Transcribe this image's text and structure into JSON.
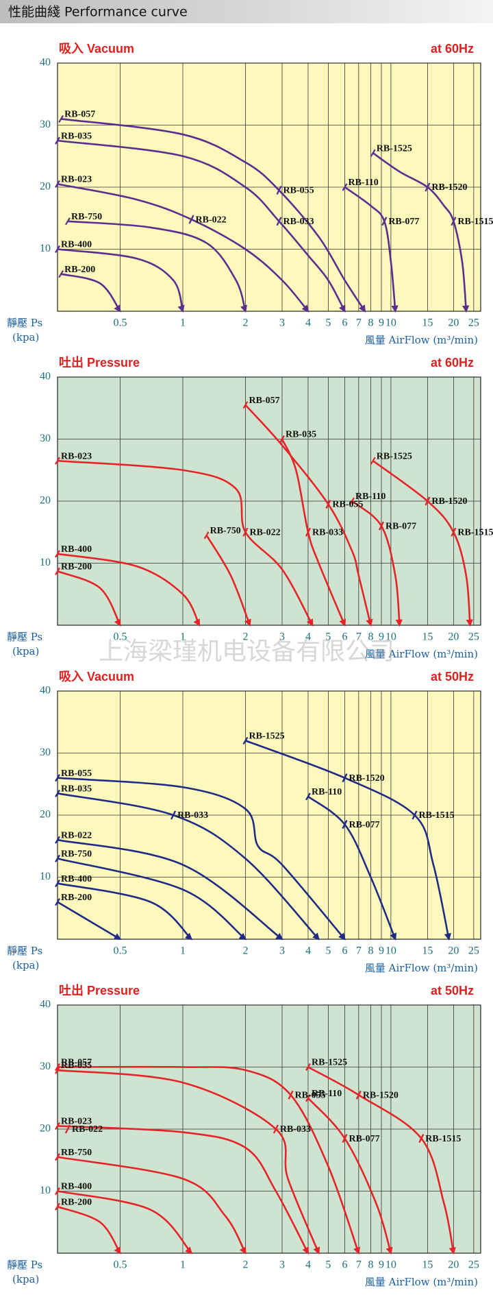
{
  "header": "性能曲綫 Performance curve",
  "watermark": "上海梁瑾机电设备有限公司",
  "chart_data": [
    {
      "type": "line",
      "title": "吸入 Vacuum",
      "subtitle": "at 60Hz",
      "ylabel": "靜壓 Ps",
      "ylabel_unit": "(kpa)",
      "xlabel": "風量 AirFlow (m³/min)",
      "xscale": "log",
      "xlim": [
        0.25,
        27
      ],
      "xticks": [
        0.5,
        1,
        2,
        3,
        4,
        5,
        6,
        7,
        8,
        9,
        10,
        15,
        20,
        25
      ],
      "ylim": [
        0,
        40
      ],
      "yticks": [
        10,
        20,
        30,
        40
      ],
      "grid": true,
      "background": "#fdf9bd",
      "color": "#5a2d8f",
      "series": [
        {
          "name": "RB-057",
          "x": [
            0.26,
            1,
            2,
            2.9,
            4.5,
            6,
            7.5
          ],
          "values": [
            31,
            28.5,
            24,
            19.5,
            12,
            5,
            0
          ]
        },
        {
          "name": "RB-035",
          "x": [
            0.25,
            1,
            2,
            2.9,
            4,
            5,
            6
          ],
          "values": [
            27.5,
            25,
            20,
            14.5,
            9,
            5,
            0
          ]
        },
        {
          "name": "RB-023",
          "x": [
            0.25,
            0.6,
            1.1,
            2,
            3,
            4
          ],
          "values": [
            20.5,
            18,
            14.8,
            10,
            5,
            0
          ]
        },
        {
          "name": "RB-750",
          "x": [
            0.28,
            0.7,
            1.3,
            1.8,
            2
          ],
          "values": [
            14.5,
            13.5,
            11,
            5,
            0
          ]
        },
        {
          "name": "RB-400",
          "x": [
            0.25,
            0.6,
            0.9,
            1
          ],
          "values": [
            10,
            8.5,
            5,
            0
          ]
        },
        {
          "name": "RB-200",
          "x": [
            0.26,
            0.4,
            0.5
          ],
          "values": [
            6,
            4.5,
            0
          ]
        },
        {
          "name": "RB-110",
          "x": [
            6,
            8,
            9.3,
            10,
            10.5
          ],
          "values": [
            20,
            17,
            14.5,
            8,
            0
          ]
        },
        {
          "name": "RB-1525",
          "x": [
            8.2,
            11,
            15,
            18,
            20,
            22,
            23
          ],
          "values": [
            25.5,
            22.5,
            20,
            17,
            14.5,
            8,
            0
          ]
        }
      ],
      "markers": [
        {
          "label": "RB-055",
          "x": 2.9,
          "y": 19.5
        },
        {
          "label": "RB-033",
          "x": 2.9,
          "y": 14.5
        },
        {
          "label": "RB-022",
          "x": 1.1,
          "y": 14.8
        },
        {
          "label": "RB-077",
          "x": 9.3,
          "y": 14.5
        },
        {
          "label": "RB-1520",
          "x": 15,
          "y": 20
        },
        {
          "label": "RB-1515",
          "x": 20,
          "y": 14.5
        }
      ]
    },
    {
      "type": "line",
      "title": "吐出 Pressure",
      "subtitle": "at 60Hz",
      "ylabel": "靜壓 Ps",
      "ylabel_unit": "(kpa)",
      "xlabel": "風量 AirFlow (m³/min)",
      "xscale": "log",
      "xlim": [
        0.25,
        27
      ],
      "xticks": [
        0.5,
        1,
        2,
        3,
        4,
        5,
        6,
        7,
        8,
        9,
        10,
        15,
        20,
        25
      ],
      "ylim": [
        0,
        40
      ],
      "yticks": [
        10,
        20,
        30,
        40
      ],
      "grid": true,
      "background": "#cfe4d0",
      "color": "#e52429",
      "series": [
        {
          "name": "RB-057",
          "x": [
            2,
            3,
            5,
            6.5,
            7,
            8
          ],
          "values": [
            35.5,
            29,
            19.5,
            12,
            8,
            0
          ]
        },
        {
          "name": "RB-035",
          "x": [
            3,
            3.5,
            4,
            4.5,
            6
          ],
          "values": [
            30,
            25,
            15,
            10,
            0
          ]
        },
        {
          "name": "RB-023",
          "x": [
            0.25,
            1,
            1.8,
            2,
            3,
            4.2
          ],
          "values": [
            26.5,
            25,
            22,
            15,
            9,
            0
          ]
        },
        {
          "name": "RB-750",
          "x": [
            1.3,
            1.7,
            2.1
          ],
          "values": [
            14.5,
            8,
            0
          ]
        },
        {
          "name": "RB-400",
          "x": [
            0.25,
            0.6,
            1,
            1.2
          ],
          "values": [
            11.5,
            9.5,
            5,
            0
          ]
        },
        {
          "name": "RB-200",
          "x": [
            0.25,
            0.4,
            0.5
          ],
          "values": [
            8.7,
            6,
            0
          ]
        },
        {
          "name": "RB-110",
          "x": [
            6.5,
            9,
            10.5,
            11
          ],
          "values": [
            20,
            16,
            8,
            0
          ]
        },
        {
          "name": "RB-1525",
          "x": [
            8.2,
            15,
            20,
            23,
            24
          ],
          "values": [
            26.5,
            20,
            15,
            8,
            0
          ]
        }
      ],
      "markers": [
        {
          "label": "RB-055",
          "x": 5,
          "y": 19.5
        },
        {
          "label": "RB-033",
          "x": 4,
          "y": 15
        },
        {
          "label": "RB-022",
          "x": 2,
          "y": 15
        },
        {
          "label": "RB-077",
          "x": 9,
          "y": 16
        },
        {
          "label": "RB-1520",
          "x": 15,
          "y": 20
        },
        {
          "label": "RB-1515",
          "x": 20,
          "y": 15
        }
      ]
    },
    {
      "type": "line",
      "title": "吸入 Vacuum",
      "subtitle": "at 50Hz",
      "ylabel": "靜壓 Ps",
      "ylabel_unit": "(kpa)",
      "xlabel": "風量 AirFlow (m³/min)",
      "xscale": "log",
      "xlim": [
        0.25,
        27
      ],
      "xticks": [
        0.5,
        1,
        2,
        3,
        4,
        5,
        6,
        7,
        8,
        9,
        10,
        15,
        20,
        25
      ],
      "ylim": [
        0,
        40
      ],
      "yticks": [
        10,
        20,
        30,
        40
      ],
      "grid": true,
      "background": "#fdf9bd",
      "color": "#1f2a86",
      "series": [
        {
          "name": "RB-1525",
          "x": [
            2,
            6,
            13,
            16,
            19
          ],
          "values": [
            32,
            26,
            20,
            12,
            0
          ]
        },
        {
          "name": "RB-110",
          "x": [
            4,
            6,
            8,
            10.5
          ],
          "values": [
            23,
            18.5,
            10,
            0
          ]
        },
        {
          "name": "RB-055",
          "x": [
            0.25,
            1,
            2,
            2.3,
            3,
            6
          ],
          "values": [
            26,
            24.5,
            21,
            15,
            12,
            0
          ]
        },
        {
          "name": "RB-035",
          "x": [
            0.25,
            0.9,
            2,
            4.5
          ],
          "values": [
            23.5,
            20,
            13,
            0
          ]
        },
        {
          "name": "RB-022",
          "x": [
            0.25,
            1,
            3
          ],
          "values": [
            16,
            12,
            0
          ]
        },
        {
          "name": "RB-750",
          "x": [
            0.25,
            1,
            2
          ],
          "values": [
            13,
            8,
            0
          ]
        },
        {
          "name": "RB-400",
          "x": [
            0.25,
            0.7,
            1.1
          ],
          "values": [
            9,
            6,
            0
          ]
        },
        {
          "name": "RB-200",
          "x": [
            0.25,
            0.5
          ],
          "values": [
            6,
            0
          ]
        }
      ],
      "markers": [
        {
          "label": "RB-1520",
          "x": 6,
          "y": 26
        },
        {
          "label": "RB-1515",
          "x": 13,
          "y": 20
        },
        {
          "label": "RB-077",
          "x": 6,
          "y": 18.5
        },
        {
          "label": "RB-033",
          "x": 0.9,
          "y": 20
        }
      ]
    },
    {
      "type": "line",
      "title": "吐出 Pressure",
      "subtitle": "at 50Hz",
      "ylabel": "靜壓 Ps",
      "ylabel_unit": "(kpa)",
      "xlabel": "風量 AirFlow (m³/min)",
      "xscale": "log",
      "xlim": [
        0.25,
        27
      ],
      "xticks": [
        0.5,
        1,
        2,
        3,
        4,
        5,
        6,
        7,
        8,
        9,
        10,
        15,
        20,
        25
      ],
      "ylim": [
        0,
        40
      ],
      "yticks": [
        10,
        20,
        30,
        40
      ],
      "grid": true,
      "background": "#cfe4d0",
      "color": "#e52429",
      "series": [
        {
          "name": "RB-057",
          "x": [
            0.25,
            1,
            2,
            3.3,
            5,
            7
          ],
          "values": [
            30,
            30,
            29.5,
            25.5,
            14,
            0
          ]
        },
        {
          "name": "RB-035",
          "x": [
            0.25,
            1,
            2.8,
            3.2,
            4.5
          ],
          "values": [
            29.5,
            27.5,
            20,
            12,
            0
          ]
        },
        {
          "name": "RB-023",
          "x": [
            0.25,
            1,
            2,
            2.8,
            4
          ],
          "values": [
            20.5,
            19.5,
            17,
            10,
            0
          ]
        },
        {
          "name": "RB-750",
          "x": [
            0.25,
            1,
            1.6,
            2
          ],
          "values": [
            15.5,
            12,
            6,
            0
          ]
        },
        {
          "name": "RB-400",
          "x": [
            0.25,
            0.7,
            1.1
          ],
          "values": [
            10,
            7,
            0
          ]
        },
        {
          "name": "RB-200",
          "x": [
            0.25,
            0.4,
            0.5
          ],
          "values": [
            7.5,
            5,
            0
          ]
        },
        {
          "name": "RB-110",
          "x": [
            4,
            6,
            8.5,
            10
          ],
          "values": [
            25,
            18.5,
            8,
            0
          ]
        },
        {
          "name": "RB-1525",
          "x": [
            4,
            7,
            14,
            18,
            20
          ],
          "values": [
            30,
            25.5,
            18.5,
            8,
            0
          ]
        }
      ],
      "markers": [
        {
          "label": "RB-055",
          "x": 3.3,
          "y": 25.5
        },
        {
          "label": "RB-033",
          "x": 2.8,
          "y": 20
        },
        {
          "label": "RB-022",
          "x": 0.28,
          "y": 20
        },
        {
          "label": "RB-077",
          "x": 6,
          "y": 18.5
        },
        {
          "label": "RB-1520",
          "x": 7,
          "y": 25.5
        },
        {
          "label": "RB-1515",
          "x": 14,
          "y": 18.5
        }
      ]
    }
  ]
}
